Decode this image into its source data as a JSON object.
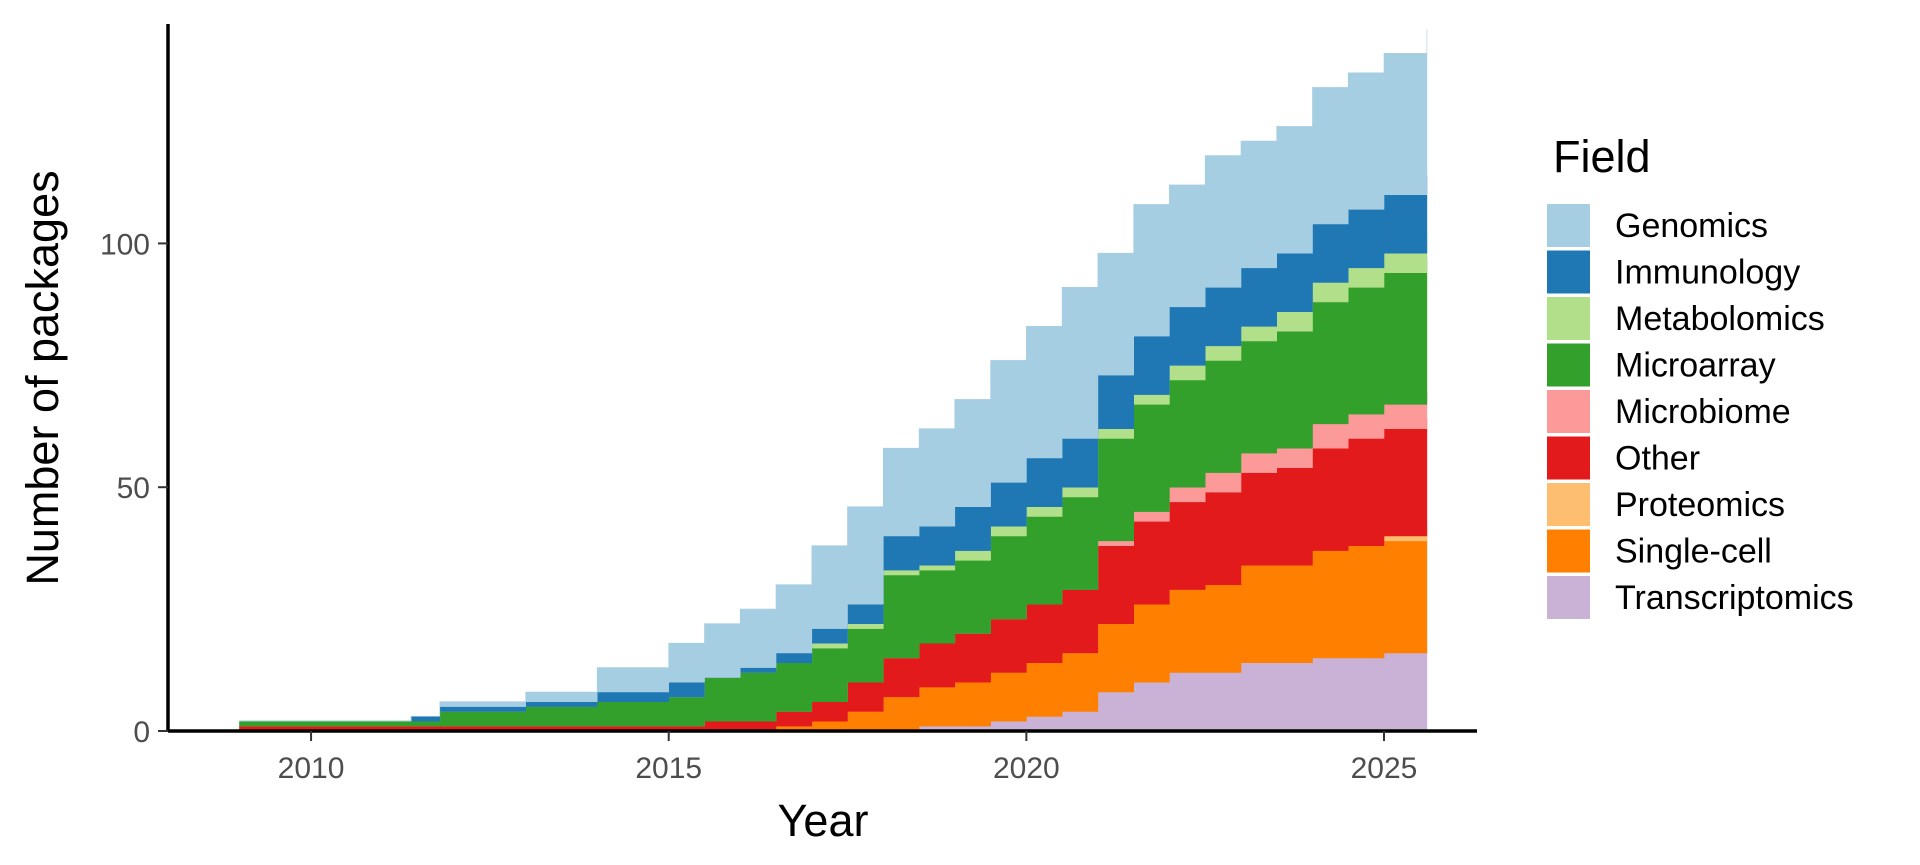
{
  "chart_data": {
    "type": "area",
    "stacked": true,
    "step": true,
    "title": "",
    "xlabel": "Year",
    "ylabel": "Number of packages",
    "xlim": [
      2008.0,
      2026.3
    ],
    "ylim": [
      0,
      145
    ],
    "x_ticks": [
      2010,
      2015,
      2020,
      2025
    ],
    "y_ticks": [
      0,
      50,
      100
    ],
    "grid": false,
    "legend": {
      "title": "Field",
      "position": "right"
    },
    "x": [
      2009.0,
      2011.4,
      2011.8,
      2013.0,
      2014.0,
      2015.0,
      2015.5,
      2016.0,
      2016.5,
      2017.0,
      2017.5,
      2018.0,
      2018.5,
      2019.0,
      2019.5,
      2020.0,
      2020.5,
      2021.0,
      2021.5,
      2022.0,
      2022.5,
      2023.0,
      2023.5,
      2024.0,
      2024.5,
      2025.0,
      2025.6
    ],
    "series": [
      {
        "name": "Transcriptomics",
        "color": "#cab2d6",
        "values": [
          0,
          0,
          0,
          0,
          0,
          0,
          0,
          0,
          0,
          0,
          0,
          0,
          1,
          1,
          2,
          3,
          4,
          8,
          10,
          12,
          12,
          14,
          14,
          15,
          15,
          16,
          17
        ]
      },
      {
        "name": "Single-cell",
        "color": "#ff7f00",
        "values": [
          0,
          0,
          0,
          0,
          0,
          0,
          0,
          0,
          1,
          2,
          4,
          7,
          8,
          9,
          10,
          11,
          12,
          14,
          16,
          17,
          18,
          20,
          20,
          22,
          23,
          23,
          23
        ]
      },
      {
        "name": "Proteomics",
        "color": "#fdbf6f",
        "values": [
          0,
          0,
          0,
          0,
          0,
          0,
          0,
          0,
          0,
          0,
          0,
          0,
          0,
          0,
          0,
          0,
          0,
          0,
          0,
          0,
          0,
          0,
          0,
          0,
          0,
          1,
          2
        ]
      },
      {
        "name": "Other",
        "color": "#e31a1c",
        "values": [
          1,
          1,
          1,
          1,
          1,
          1,
          2,
          2,
          3,
          4,
          6,
          8,
          9,
          10,
          11,
          12,
          13,
          16,
          17,
          18,
          19,
          19,
          20,
          21,
          22,
          22,
          22
        ]
      },
      {
        "name": "Microbiome",
        "color": "#fb9a99",
        "values": [
          0,
          0,
          0,
          0,
          0,
          0,
          0,
          0,
          0,
          0,
          0,
          0,
          0,
          0,
          0,
          0,
          0,
          1,
          2,
          3,
          4,
          4,
          4,
          5,
          5,
          5,
          6
        ]
      },
      {
        "name": "Microarray",
        "color": "#33a02c",
        "values": [
          1,
          1,
          3,
          4,
          5,
          6,
          9,
          10,
          10,
          11,
          11,
          17,
          15,
          15,
          17,
          18,
          19,
          21,
          22,
          22,
          23,
          23,
          24,
          25,
          26,
          27,
          27
        ]
      },
      {
        "name": "Metabolomics",
        "color": "#b2df8a",
        "values": [
          0,
          0,
          0,
          0,
          0,
          0,
          0,
          0,
          0,
          1,
          1,
          1,
          1,
          2,
          2,
          2,
          2,
          2,
          2,
          3,
          3,
          3,
          4,
          4,
          4,
          4,
          5
        ]
      },
      {
        "name": "Immunology",
        "color": "#1f78b4",
        "values": [
          0,
          1,
          1,
          1,
          2,
          3,
          0,
          1,
          2,
          3,
          4,
          7,
          8,
          9,
          9,
          10,
          10,
          11,
          12,
          12,
          12,
          12,
          12,
          12,
          12,
          12,
          12
        ]
      },
      {
        "name": "Genomics",
        "color": "#a6cee3",
        "values": [
          0,
          0,
          1,
          2,
          5,
          8,
          11,
          12,
          14,
          17,
          20,
          18,
          20,
          22,
          25,
          27,
          31,
          25,
          27,
          25,
          27,
          26,
          26,
          28,
          28,
          29,
          30
        ]
      }
    ]
  }
}
